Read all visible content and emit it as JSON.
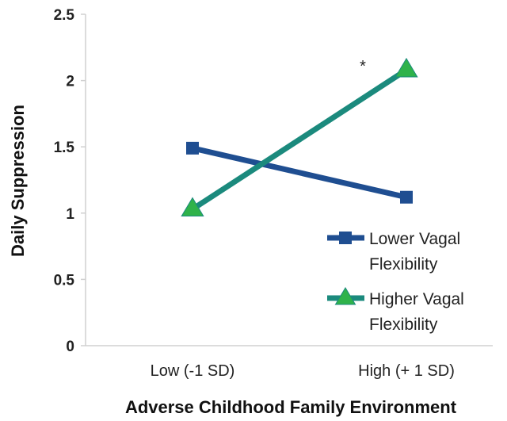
{
  "chart_data": {
    "type": "line",
    "categories": [
      "Low (-1 SD)",
      "High (+ 1 SD)"
    ],
    "xlabel": "Adverse Childhood Family Environment",
    "ylabel": "Daily Suppression",
    "ylim": [
      0,
      2.5
    ],
    "yticks": [
      "0",
      "0.5",
      "1",
      "1.5",
      "2",
      "2.5"
    ],
    "ytick_values": [
      0,
      0.5,
      1,
      1.5,
      2,
      2.5
    ],
    "grid": false,
    "legend_position": "bottom-right",
    "series": [
      {
        "name": "Lower Vagal Flexibility",
        "name_lines": [
          "Lower Vagal",
          "Flexibility"
        ],
        "values": [
          1.49,
          1.12
        ],
        "color": "#1f4e91",
        "marker": "square"
      },
      {
        "name": "Higher Vagal Flexibility",
        "name_lines": [
          "Higher Vagal",
          "Flexibility"
        ],
        "values": [
          1.03,
          2.08
        ],
        "color": "#1b8a7d",
        "marker_fill": "#2fb24a",
        "marker": "triangle"
      }
    ],
    "annotations": [
      {
        "text": "*",
        "category_index": 1,
        "y": 2.08
      }
    ]
  }
}
